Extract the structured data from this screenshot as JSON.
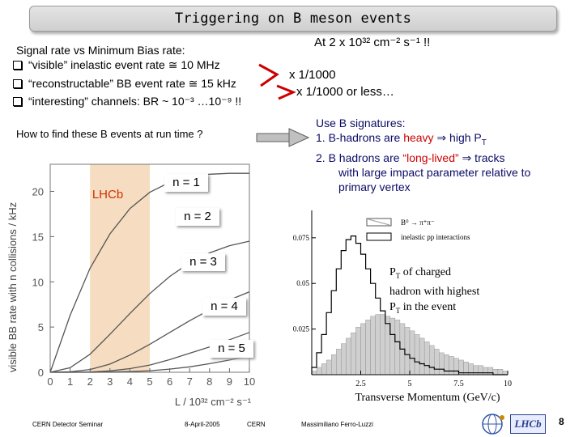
{
  "slide": {
    "title": "Triggering on B meson events",
    "rate_header": "At 2 x 10³² cm⁻² s⁻¹ !!",
    "intro": "Signal rate vs Minimum Bias rate:",
    "bullets": [
      "“visible” inelastic event rate ≅ 10 MHz",
      "“reconstructable” BB event rate ≅ 15 kHz",
      "“interesting” channels: BR ~ 10⁻³ …10⁻⁹ !!"
    ],
    "factor1": "x 1/1000",
    "factor2": "x 1/1000 or less…",
    "question": "How to find these B events at run time ?",
    "signatures_title": "Use B signatures:",
    "sig1_num": "1.",
    "sig1_a": "B-hadrons are ",
    "sig1_heavy": "heavy",
    "sig1_b": " ⇒ high P",
    "sig1_sub": "T",
    "sig2_num": "2.",
    "sig2_a": "B hadrons are ",
    "sig2_ll": "“long-lived”",
    "sig2_b": " ⇒ tracks",
    "sig2_c": "with large impact parameter relative to",
    "sig2_d": "primary vertex"
  },
  "left_plot": {
    "ylabel": "visible BB rate with n collisions / kHz",
    "xlabel": "L / 10³² cm⁻² s⁻¹",
    "band_label": "LHCb",
    "x_ticks": [
      "0",
      "1",
      "2",
      "3",
      "4",
      "5",
      "6",
      "7",
      "8",
      "9",
      "10"
    ],
    "y_ticks": [
      "0",
      "5",
      "10",
      "15",
      "20"
    ],
    "curve_labels": [
      "n = 1",
      "n = 2",
      "n = 3",
      "n = 4",
      "n = 5"
    ]
  },
  "right_plot": {
    "xlabel": "Transverse Momentum   (GeV/c)",
    "x_ticks": [
      "2.5",
      "5",
      "7.5",
      "10"
    ],
    "y_ticks": [
      "0.025",
      "0.05",
      "0.075"
    ],
    "legend_signal": "B⁰ → π⁺π⁻",
    "legend_bg": "inelastic pp interactions",
    "annotation_1": "P",
    "annotation_1_sub": "T",
    "annotation_1_rest": " of charged",
    "annotation_2": "hadron with highest",
    "annotation_3": "P",
    "annotation_3_sub": "T",
    "annotation_3_rest": " in the event"
  },
  "footer": {
    "left": "CERN Detector Seminar",
    "date": "8-April-2005",
    "place": "CERN",
    "author": "Massimiliano Ferro-Luzzi",
    "page": "8",
    "logo": "LHCb"
  },
  "chart_data": [
    {
      "type": "line",
      "title": "",
      "xlabel": "L / 10³² cm⁻² s⁻¹",
      "ylabel": "visible BB rate with n collisions / kHz",
      "xlim": [
        0,
        10
      ],
      "ylim": [
        0,
        23
      ],
      "highlight_band": {
        "label": "LHCb",
        "x": [
          2,
          5
        ]
      },
      "x": [
        0,
        1,
        2,
        3,
        4,
        5,
        6,
        7,
        8,
        9,
        10
      ],
      "series": [
        {
          "name": "n = 1",
          "values": [
            0,
            6.3,
            11.5,
            15.3,
            18.1,
            19.9,
            21.0,
            21.6,
            21.9,
            22.0,
            22.0
          ]
        },
        {
          "name": "n = 2",
          "values": [
            0,
            0.5,
            2.0,
            4.2,
            6.5,
            8.7,
            10.6,
            12.1,
            13.2,
            14.0,
            14.5
          ]
        },
        {
          "name": "n = 3",
          "values": [
            0,
            0.05,
            0.3,
            0.9,
            1.9,
            3.1,
            4.4,
            5.7,
            6.9,
            8.0,
            8.9
          ]
        },
        {
          "name": "n = 4",
          "values": [
            0,
            0,
            0.03,
            0.15,
            0.4,
            0.8,
            1.4,
            2.1,
            2.8,
            3.6,
            4.4
          ]
        },
        {
          "name": "n = 5",
          "values": [
            0,
            0,
            0,
            0.02,
            0.07,
            0.17,
            0.35,
            0.6,
            0.95,
            1.35,
            1.8
          ]
        }
      ]
    },
    {
      "type": "bar",
      "title": "",
      "xlabel": "Transverse Momentum   (GeV/c)",
      "ylabel": "",
      "xlim": [
        0,
        10
      ],
      "ylim": [
        0,
        0.09
      ],
      "bin_width": 0.25,
      "series": [
        {
          "name": "B⁰ → π⁺π⁻",
          "values": [
            0.002,
            0.004,
            0.006,
            0.008,
            0.011,
            0.014,
            0.017,
            0.02,
            0.023,
            0.026,
            0.028,
            0.03,
            0.032,
            0.033,
            0.033,
            0.032,
            0.031,
            0.03,
            0.028,
            0.026,
            0.024,
            0.022,
            0.02,
            0.018,
            0.016,
            0.014,
            0.012,
            0.011,
            0.01,
            0.009,
            0.008,
            0.007,
            0.006,
            0.005,
            0.005,
            0.004,
            0.004,
            0.003,
            0.003,
            0.002
          ]
        },
        {
          "name": "inelastic pp interactions",
          "values": [
            0.004,
            0.012,
            0.022,
            0.034,
            0.046,
            0.058,
            0.068,
            0.074,
            0.076,
            0.072,
            0.066,
            0.058,
            0.05,
            0.042,
            0.035,
            0.028,
            0.022,
            0.018,
            0.014,
            0.011,
            0.009,
            0.007,
            0.006,
            0.005,
            0.004,
            0.003,
            0.003,
            0.002,
            0.002,
            0.002,
            0.001,
            0.001,
            0.001,
            0.001,
            0.001,
            0.001,
            0.001,
            0,
            0,
            0
          ]
        }
      ]
    }
  ]
}
